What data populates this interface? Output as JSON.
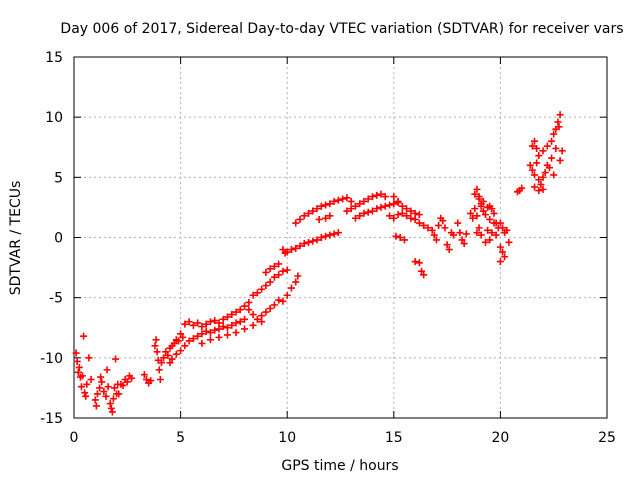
{
  "chart_data": {
    "type": "scatter",
    "title": "Day 006 of 2017, Sidereal Day-to-day VTEC variation (SDTVAR) for receiver vars",
    "xlabel": "GPS time / hours",
    "ylabel": "SDTVAR / TECUs",
    "xlim": [
      0,
      25
    ],
    "ylim": [
      -15,
      15
    ],
    "x_ticks": [
      0,
      5,
      10,
      15,
      20,
      25
    ],
    "y_ticks": [
      -15,
      -10,
      -5,
      0,
      5,
      10,
      15
    ],
    "grid": true,
    "marker": "+",
    "colors": {
      "marker": "#ff0000",
      "grid": "#b0b0b0",
      "axis": "#000000"
    },
    "series": [
      {
        "name": "SDTVAR",
        "points": [
          [
            0.1,
            -9.6
          ],
          [
            0.15,
            -10.3
          ],
          [
            0.2,
            -11.2
          ],
          [
            0.25,
            -10.8
          ],
          [
            0.3,
            -11.6
          ],
          [
            0.35,
            -12.4
          ],
          [
            0.4,
            -11.5
          ],
          [
            0.45,
            -8.2
          ],
          [
            0.5,
            -12.9
          ],
          [
            0.55,
            -13.2
          ],
          [
            0.6,
            -12.2
          ],
          [
            0.7,
            -10.0
          ],
          [
            0.8,
            -11.8
          ],
          [
            1.0,
            -13.5
          ],
          [
            1.05,
            -14.0
          ],
          [
            1.1,
            -13.0
          ],
          [
            1.2,
            -12.5
          ],
          [
            1.25,
            -11.6
          ],
          [
            1.3,
            -12.0
          ],
          [
            1.4,
            -12.8
          ],
          [
            1.5,
            -13.2
          ],
          [
            1.55,
            -11.0
          ],
          [
            1.6,
            -12.4
          ],
          [
            1.7,
            -13.8
          ],
          [
            1.75,
            -14.2
          ],
          [
            1.8,
            -14.5
          ],
          [
            1.85,
            -13.4
          ],
          [
            1.9,
            -12.5
          ],
          [
            1.95,
            -10.1
          ],
          [
            2.0,
            -13.0
          ],
          [
            2.05,
            -12.2
          ],
          [
            2.1,
            -13.0
          ],
          [
            2.2,
            -12.2
          ],
          [
            2.3,
            -12.3
          ],
          [
            2.4,
            -11.8
          ],
          [
            2.5,
            -12.0
          ],
          [
            2.6,
            -11.5
          ],
          [
            2.7,
            -11.7
          ],
          [
            3.3,
            -11.4
          ],
          [
            3.4,
            -11.8
          ],
          [
            3.5,
            -12.1
          ],
          [
            3.6,
            -11.9
          ],
          [
            3.8,
            -9.0
          ],
          [
            3.85,
            -8.5
          ],
          [
            3.9,
            -9.5
          ],
          [
            3.95,
            -10.2
          ],
          [
            4.0,
            -11.0
          ],
          [
            4.05,
            -11.8
          ],
          [
            4.1,
            -10.4
          ],
          [
            4.2,
            -10.0
          ],
          [
            4.3,
            -9.5
          ],
          [
            4.4,
            -9.8
          ],
          [
            4.5,
            -9.2
          ],
          [
            4.6,
            -9.0
          ],
          [
            4.7,
            -8.8
          ],
          [
            4.8,
            -8.5
          ],
          [
            4.9,
            -8.6
          ],
          [
            5.0,
            -8.0
          ],
          [
            5.1,
            -8.3
          ],
          [
            4.5,
            -10.4
          ],
          [
            4.6,
            -10.1
          ],
          [
            4.8,
            -9.7
          ],
          [
            5.0,
            -9.4
          ],
          [
            5.2,
            -9.0
          ],
          [
            5.4,
            -8.6
          ],
          [
            5.2,
            -7.2
          ],
          [
            5.4,
            -7.0
          ],
          [
            5.6,
            -7.3
          ],
          [
            5.8,
            -7.1
          ],
          [
            6.0,
            -7.4
          ],
          [
            6.2,
            -7.2
          ],
          [
            6.4,
            -7.0
          ],
          [
            6.6,
            -6.9
          ],
          [
            6.8,
            -7.1
          ],
          [
            7.0,
            -6.8
          ],
          [
            7.2,
            -6.6
          ],
          [
            7.4,
            -6.4
          ],
          [
            7.6,
            -6.2
          ],
          [
            7.8,
            -6.0
          ],
          [
            8.0,
            -5.7
          ],
          [
            8.2,
            -5.4
          ],
          [
            5.6,
            -8.4
          ],
          [
            5.8,
            -8.2
          ],
          [
            6.0,
            -8.0
          ],
          [
            6.2,
            -7.8
          ],
          [
            6.4,
            -7.9
          ],
          [
            6.6,
            -7.7
          ],
          [
            6.8,
            -7.6
          ],
          [
            7.0,
            -7.4
          ],
          [
            7.2,
            -7.5
          ],
          [
            7.4,
            -7.3
          ],
          [
            7.6,
            -7.1
          ],
          [
            7.8,
            -7.0
          ],
          [
            8.0,
            -6.8
          ],
          [
            6.0,
            -8.8
          ],
          [
            6.4,
            -8.5
          ],
          [
            6.8,
            -8.3
          ],
          [
            7.2,
            -8.1
          ],
          [
            7.6,
            -7.9
          ],
          [
            8.0,
            -7.6
          ],
          [
            8.4,
            -7.3
          ],
          [
            8.8,
            -7.0
          ],
          [
            8.2,
            -6.0
          ],
          [
            8.4,
            -6.4
          ],
          [
            8.6,
            -6.8
          ],
          [
            8.8,
            -6.5
          ],
          [
            9.0,
            -6.2
          ],
          [
            9.2,
            -5.9
          ],
          [
            9.4,
            -5.6
          ],
          [
            9.6,
            -5.2
          ],
          [
            8.4,
            -4.8
          ],
          [
            8.6,
            -4.6
          ],
          [
            8.8,
            -4.3
          ],
          [
            9.0,
            -4.0
          ],
          [
            9.2,
            -3.7
          ],
          [
            9.4,
            -3.3
          ],
          [
            9.6,
            -3.1
          ],
          [
            9.8,
            -2.8
          ],
          [
            10.0,
            -2.7
          ],
          [
            9.0,
            -2.9
          ],
          [
            9.2,
            -2.6
          ],
          [
            9.4,
            -2.4
          ],
          [
            9.6,
            -2.2
          ],
          [
            9.8,
            -5.3
          ],
          [
            10.0,
            -4.8
          ],
          [
            10.2,
            -4.2
          ],
          [
            10.4,
            -3.7
          ],
          [
            10.5,
            -3.2
          ],
          [
            10.0,
            -1.2
          ],
          [
            10.2,
            -1.0
          ],
          [
            10.4,
            -0.9
          ],
          [
            10.6,
            -0.7
          ],
          [
            10.8,
            -0.5
          ],
          [
            11.0,
            -0.4
          ],
          [
            11.2,
            -0.3
          ],
          [
            11.4,
            -0.2
          ],
          [
            11.6,
            0.0
          ],
          [
            11.8,
            0.1
          ],
          [
            12.0,
            0.2
          ],
          [
            12.2,
            0.3
          ],
          [
            12.4,
            0.4
          ],
          [
            9.8,
            -1.0
          ],
          [
            9.9,
            -1.3
          ],
          [
            10.4,
            1.2
          ],
          [
            10.6,
            1.5
          ],
          [
            10.8,
            1.8
          ],
          [
            11.0,
            2.0
          ],
          [
            11.2,
            2.2
          ],
          [
            11.4,
            2.4
          ],
          [
            11.6,
            2.6
          ],
          [
            11.8,
            2.7
          ],
          [
            12.0,
            2.8
          ],
          [
            12.2,
            3.0
          ],
          [
            12.4,
            3.1
          ],
          [
            12.6,
            3.2
          ],
          [
            12.8,
            3.3
          ],
          [
            13.0,
            3.0
          ],
          [
            11.5,
            1.5
          ],
          [
            11.8,
            1.6
          ],
          [
            12.0,
            1.8
          ],
          [
            12.8,
            2.2
          ],
          [
            13.0,
            2.4
          ],
          [
            13.2,
            2.6
          ],
          [
            13.4,
            2.8
          ],
          [
            13.6,
            3.0
          ],
          [
            13.8,
            3.2
          ],
          [
            14.0,
            3.4
          ],
          [
            14.2,
            3.5
          ],
          [
            14.4,
            3.6
          ],
          [
            14.6,
            3.4
          ],
          [
            13.2,
            1.6
          ],
          [
            13.4,
            1.8
          ],
          [
            13.6,
            2.0
          ],
          [
            13.8,
            2.1
          ],
          [
            14.0,
            2.2
          ],
          [
            14.2,
            2.4
          ],
          [
            14.4,
            2.5
          ],
          [
            14.6,
            2.6
          ],
          [
            14.8,
            2.7
          ],
          [
            15.0,
            2.8
          ],
          [
            15.2,
            2.9
          ],
          [
            14.8,
            1.8
          ],
          [
            15.0,
            1.6
          ],
          [
            15.2,
            1.9
          ],
          [
            15.4,
            2.0
          ],
          [
            15.6,
            1.8
          ],
          [
            15.8,
            1.6
          ],
          [
            16.0,
            1.5
          ],
          [
            16.2,
            1.2
          ],
          [
            16.4,
            1.0
          ],
          [
            16.6,
            0.8
          ],
          [
            15.0,
            3.4
          ],
          [
            15.2,
            3.0
          ],
          [
            15.4,
            2.6
          ],
          [
            15.6,
            2.4
          ],
          [
            15.8,
            2.2
          ],
          [
            16.0,
            2.0
          ],
          [
            16.2,
            1.9
          ],
          [
            15.1,
            0.1
          ],
          [
            15.3,
            0.0
          ],
          [
            15.5,
            -0.2
          ],
          [
            16.0,
            -2.0
          ],
          [
            16.2,
            -2.1
          ],
          [
            16.3,
            -2.8
          ],
          [
            16.4,
            -3.1
          ],
          [
            16.8,
            0.6
          ],
          [
            16.9,
            0.2
          ],
          [
            17.0,
            -0.2
          ],
          [
            17.1,
            1.0
          ],
          [
            17.2,
            1.6
          ],
          [
            17.3,
            1.4
          ],
          [
            17.4,
            0.8
          ],
          [
            17.5,
            -0.6
          ],
          [
            17.6,
            -1.0
          ],
          [
            17.7,
            0.4
          ],
          [
            17.8,
            0.2
          ],
          [
            18.0,
            1.2
          ],
          [
            18.1,
            0.4
          ],
          [
            18.2,
            -0.2
          ],
          [
            18.3,
            -0.5
          ],
          [
            18.4,
            0.3
          ],
          [
            18.6,
            2.0
          ],
          [
            18.7,
            1.6
          ],
          [
            18.8,
            2.4
          ],
          [
            18.9,
            1.8
          ],
          [
            19.0,
            3.2
          ],
          [
            19.1,
            2.8
          ],
          [
            19.2,
            2.2
          ],
          [
            19.3,
            1.9
          ],
          [
            19.4,
            2.5
          ],
          [
            19.5,
            1.5
          ],
          [
            18.8,
            3.6
          ],
          [
            18.9,
            4.0
          ],
          [
            19.0,
            3.4
          ],
          [
            19.1,
            2.6
          ],
          [
            19.2,
            3.0
          ],
          [
            18.9,
            0.4
          ],
          [
            19.0,
            0.8
          ],
          [
            19.1,
            0.2
          ],
          [
            19.3,
            -0.4
          ],
          [
            19.4,
            0.6
          ],
          [
            19.5,
            -0.2
          ],
          [
            19.6,
            0.4
          ],
          [
            19.7,
            1.2
          ],
          [
            19.8,
            0.2
          ],
          [
            19.5,
            2.6
          ],
          [
            19.6,
            2.4
          ],
          [
            19.7,
            2.0
          ],
          [
            19.8,
            1.2
          ],
          [
            19.9,
            0.8
          ],
          [
            20.0,
            -0.8
          ],
          [
            20.1,
            -1.2
          ],
          [
            20.2,
            -1.6
          ],
          [
            20.0,
            -2.0
          ],
          [
            20.0,
            1.2
          ],
          [
            20.1,
            0.8
          ],
          [
            20.2,
            0.4
          ],
          [
            20.3,
            0.6
          ],
          [
            20.4,
            -0.4
          ],
          [
            20.8,
            3.8
          ],
          [
            20.9,
            3.9
          ],
          [
            21.0,
            4.1
          ],
          [
            21.4,
            6.0
          ],
          [
            21.5,
            5.6
          ],
          [
            21.6,
            5.2
          ],
          [
            21.7,
            6.2
          ],
          [
            21.8,
            4.8
          ],
          [
            21.9,
            4.4
          ],
          [
            22.0,
            5.0
          ],
          [
            22.1,
            5.4
          ],
          [
            22.2,
            6.0
          ],
          [
            22.3,
            5.8
          ],
          [
            22.4,
            6.6
          ],
          [
            22.5,
            5.2
          ],
          [
            21.5,
            7.6
          ],
          [
            21.6,
            8.0
          ],
          [
            21.7,
            7.4
          ],
          [
            21.8,
            6.8
          ],
          [
            22.0,
            7.2
          ],
          [
            22.2,
            7.6
          ],
          [
            22.4,
            8.0
          ],
          [
            22.5,
            8.6
          ],
          [
            22.6,
            9.0
          ],
          [
            22.7,
            9.6
          ],
          [
            22.8,
            10.2
          ],
          [
            22.75,
            9.2
          ],
          [
            22.6,
            7.4
          ],
          [
            22.8,
            6.4
          ],
          [
            22.9,
            7.2
          ],
          [
            21.6,
            4.2
          ],
          [
            21.8,
            3.9
          ],
          [
            22.0,
            4.0
          ]
        ]
      }
    ]
  }
}
